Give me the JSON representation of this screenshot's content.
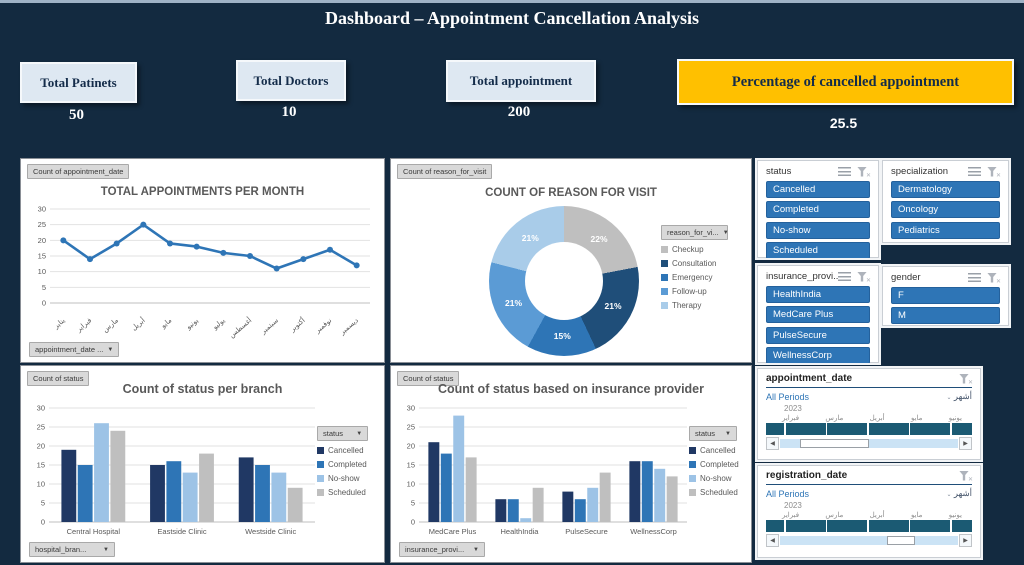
{
  "title": "Dashboard – Appointment Cancellation Analysis",
  "kpis": [
    {
      "label": "Total Patinets",
      "value": "50"
    },
    {
      "label": "Total Doctors",
      "value": "10"
    },
    {
      "label": "Total appointment",
      "value": "200"
    },
    {
      "label": "Percentage of cancelled appointment",
      "value": "25.5"
    }
  ],
  "colors": {
    "background": "#132A40",
    "accent_blue": "#2E75B6",
    "gold": "#FFC000",
    "kpi_card": "#DEE8F2",
    "timeline_bar": "#1B5A73"
  },
  "chart_data": [
    {
      "type": "line",
      "title": "TOTAL APPOINTMENTS PER MONTH",
      "field_button": "Count of appointment_date",
      "axis_button": "appointment_date ...",
      "categories": [
        "يناير",
        "فبراير",
        "مارس",
        "أبريل",
        "مايو",
        "يونيو",
        "يوليو",
        "أغسطس",
        "سبتمبر",
        "أكتوبر",
        "نوفمبر",
        "ديسمبر"
      ],
      "values": [
        20,
        14,
        19,
        25,
        19,
        18,
        16,
        15,
        11,
        14,
        17,
        12
      ],
      "ylim": [
        0,
        30
      ],
      "yticks": [
        0,
        5,
        10,
        15,
        20,
        25,
        30
      ],
      "line_color": "#2E75B6",
      "grid": true,
      "legend_position": "none"
    },
    {
      "type": "pie",
      "subtype": "donut",
      "title": "COUNT OF REASON FOR VISIT",
      "field_button": "Count of reason_for_visit",
      "legend_button": "reason_for_vi...",
      "legend_position": "right",
      "slices": [
        {
          "label": "Checkup",
          "pct": 22,
          "color": "#BFBFBF"
        },
        {
          "label": "Consultation",
          "pct": 21,
          "color": "#1F4E79"
        },
        {
          "label": "Emergency",
          "pct": 15,
          "color": "#2E75B6"
        },
        {
          "label": "Follow-up",
          "pct": 21,
          "color": "#5B9BD5"
        },
        {
          "label": "Therapy",
          "pct": 21,
          "color": "#A9CCE9"
        }
      ]
    },
    {
      "type": "bar",
      "title": "Count of status per branch",
      "field_button": "Count of status",
      "axis_button": "hospital_bran...",
      "legend_button": "status",
      "legend_position": "right",
      "categories": [
        "Central Hospital",
        "Eastside Clinic",
        "Westside Clinic"
      ],
      "series": [
        {
          "name": "Cancelled",
          "color": "#203864",
          "values": [
            19,
            15,
            17
          ]
        },
        {
          "name": "Completed",
          "color": "#2E75B6",
          "values": [
            15,
            16,
            15
          ]
        },
        {
          "name": "No-show",
          "color": "#9DC3E6",
          "values": [
            26,
            13,
            13
          ]
        },
        {
          "name": "Scheduled",
          "color": "#BFBFBF",
          "values": [
            24,
            18,
            9
          ]
        }
      ],
      "ylim": [
        0,
        30
      ],
      "yticks": [
        0,
        5,
        10,
        15,
        20,
        25,
        30
      ],
      "grid": true
    },
    {
      "type": "bar",
      "title": "Count of status based on insurance provider",
      "field_button": "Count of status",
      "axis_button": "insurance_provi...",
      "legend_button": "status",
      "legend_position": "right",
      "categories": [
        "MedCare Plus",
        "HealthIndia",
        "PulseSecure",
        "WellnessCorp"
      ],
      "series": [
        {
          "name": "Cancelled",
          "color": "#203864",
          "values": [
            21,
            6,
            8,
            16
          ]
        },
        {
          "name": "Completed",
          "color": "#2E75B6",
          "values": [
            18,
            6,
            6,
            16
          ]
        },
        {
          "name": "No-show",
          "color": "#9DC3E6",
          "values": [
            28,
            1,
            9,
            14
          ]
        },
        {
          "name": "Scheduled",
          "color": "#BFBFBF",
          "values": [
            17,
            9,
            13,
            12
          ]
        }
      ],
      "ylim": [
        0,
        30
      ],
      "yticks": [
        0,
        5,
        10,
        15,
        20,
        25,
        30
      ],
      "grid": true
    }
  ],
  "slicers": [
    {
      "title": "status",
      "items": [
        "Cancelled",
        "Completed",
        "No-show",
        "Scheduled"
      ]
    },
    {
      "title": "specialization",
      "items": [
        "Dermatology",
        "Oncology",
        "Pediatrics"
      ]
    },
    {
      "title": "insurance_provi...",
      "items": [
        "HealthIndia",
        "MedCare Plus",
        "PulseSecure",
        "WellnessCorp"
      ]
    },
    {
      "title": "gender",
      "items": [
        "F",
        "M"
      ]
    }
  ],
  "timelines": [
    {
      "title": "appointment_date",
      "period": "All Periods",
      "unit": "أشهر",
      "year": "2023",
      "months": [
        "فبراير",
        "مارس",
        "أبريل",
        "مايو",
        "يونيو"
      ],
      "selection": {
        "thumb_left_pct": 11,
        "thumb_width_pct": 38
      }
    },
    {
      "title": "registration_date",
      "period": "All Periods",
      "unit": "أشهر",
      "year": "2023",
      "months": [
        "فبراير",
        "مارس",
        "أبريل",
        "مايو",
        "يونيو"
      ],
      "selection": {
        "thumb_left_pct": 60,
        "thumb_width_pct": 15
      }
    }
  ]
}
